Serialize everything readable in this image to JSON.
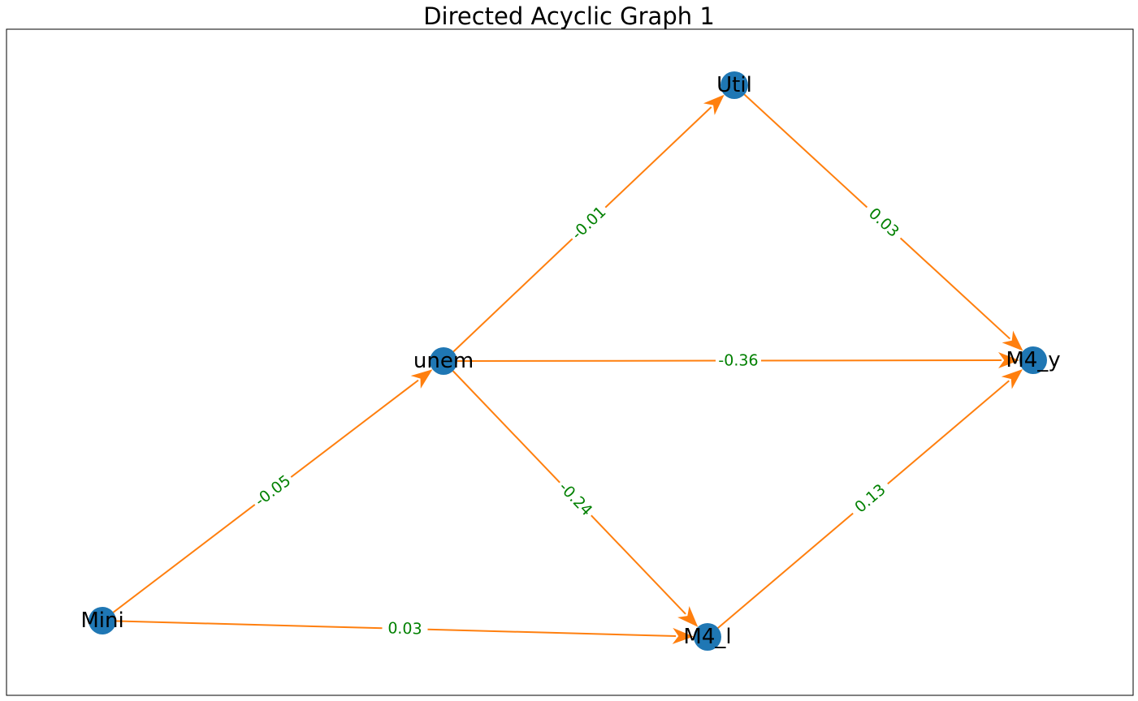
{
  "title": "Directed Acyclic Graph 1",
  "colors": {
    "node": "#1f77b4",
    "edge": "#ff7f0e",
    "edge_label": "#008000",
    "frame": "#000000"
  },
  "nodes": [
    {
      "id": "Util",
      "label": "Util"
    },
    {
      "id": "unem",
      "label": "unem"
    },
    {
      "id": "M4_y",
      "label": "M4_y"
    },
    {
      "id": "Mini",
      "label": "Mini"
    },
    {
      "id": "M4_l",
      "label": "M4_l"
    }
  ],
  "edges": [
    {
      "from": "unem",
      "to": "Util",
      "label": "-0.01"
    },
    {
      "from": "Util",
      "to": "M4_y",
      "label": "0.03"
    },
    {
      "from": "unem",
      "to": "M4_y",
      "label": "-0.36"
    },
    {
      "from": "Mini",
      "to": "unem",
      "label": "-0.05"
    },
    {
      "from": "unem",
      "to": "M4_l",
      "label": "-0.24"
    },
    {
      "from": "M4_l",
      "to": "M4_y",
      "label": "0.13"
    },
    {
      "from": "Mini",
      "to": "M4_l",
      "label": "0.03"
    }
  ]
}
